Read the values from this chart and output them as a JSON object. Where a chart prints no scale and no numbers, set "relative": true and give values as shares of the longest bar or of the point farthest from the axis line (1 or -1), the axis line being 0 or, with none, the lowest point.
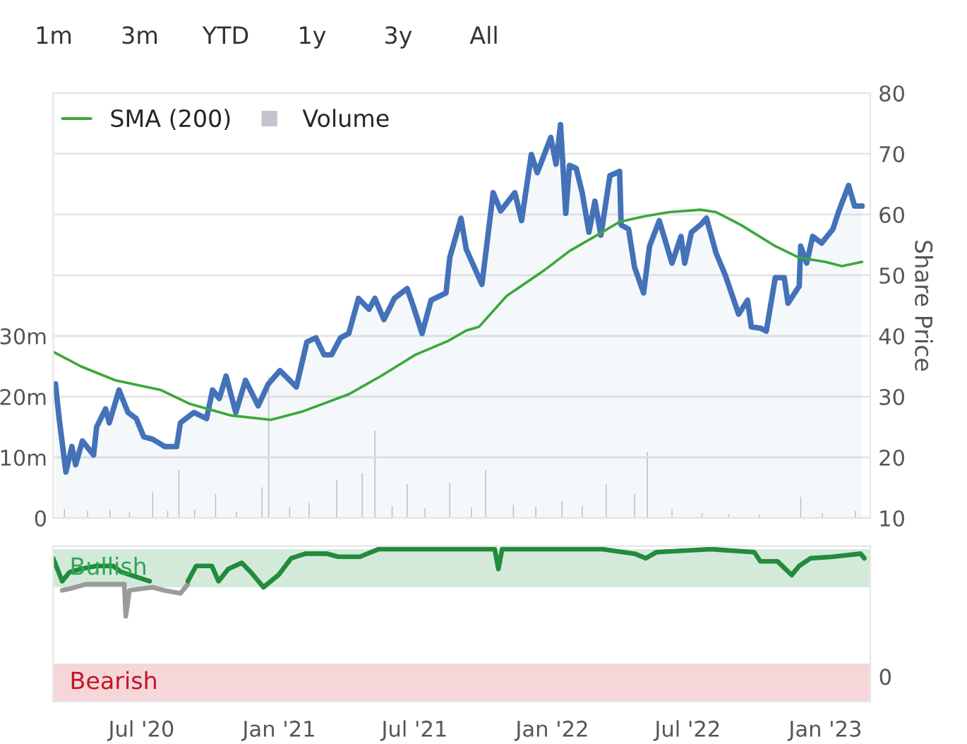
{
  "chart_data": [
    {
      "type": "line",
      "ylabel": "Share Price",
      "xlim": [
        "2020-03-05",
        "2023-03-02"
      ],
      "ylim": [
        10,
        80
      ],
      "yticks": [
        10,
        20,
        30,
        40,
        50,
        60,
        70,
        80
      ],
      "y2lim": [
        0,
        70
      ],
      "y2ticks": [
        {
          "value": 0,
          "label": "0"
        },
        {
          "value": 10,
          "label": "10m"
        },
        {
          "value": 20,
          "label": "20m"
        },
        {
          "value": 30,
          "label": "30m"
        }
      ],
      "grid": "y",
      "legend": "top left",
      "tick_labels": "y",
      "annotations": [
        "1m",
        "3m",
        "YTD",
        "1y",
        "3y",
        "All"
      ],
      "series": [
        {
          "name": "Volume",
          "type": "bar",
          "axis": "y2",
          "color": "#c4c5cc",
          "x": [
            "2020-03-20",
            "2020-04-20",
            "2020-05-20",
            "2020-06-15",
            "2020-07-16",
            "2020-08-05",
            "2020-08-20",
            "2020-09-10",
            "2020-10-08",
            "2020-11-05",
            "2020-12-09",
            "2020-12-18",
            "2021-01-15",
            "2021-02-10",
            "2021-03-19",
            "2021-04-22",
            "2021-05-09",
            "2021-06-01",
            "2021-06-21",
            "2021-07-15",
            "2021-08-17",
            "2021-09-15",
            "2021-10-04",
            "2021-11-10",
            "2021-12-10",
            "2022-01-14",
            "2022-02-10",
            "2022-03-14",
            "2022-04-21",
            "2022-05-08",
            "2022-06-10",
            "2022-07-20",
            "2022-08-25",
            "2022-10-05",
            "2022-11-29",
            "2022-12-28",
            "2023-02-10"
          ],
          "values": [
            1.5,
            1.2,
            1.3,
            1.0,
            4.4,
            1.2,
            7.9,
            1.4,
            4.0,
            1.1,
            5.1,
            23.3,
            1.8,
            2.5,
            6.3,
            7.4,
            14.4,
            2.0,
            5.6,
            1.6,
            5.8,
            1.8,
            7.9,
            2.2,
            1.9,
            2.8,
            2.0,
            5.6,
            4.0,
            10.9,
            1.5,
            0.8,
            0.7,
            0.6,
            3.5,
            0.8,
            1.2
          ]
        },
        {
          "type": "area",
          "color": "#4472b8",
          "x": [
            "2020-03-08",
            "2020-03-13",
            "2020-03-22",
            "2020-03-30",
            "2020-04-04",
            "2020-04-13",
            "2020-04-28",
            "2020-05-02",
            "2020-05-14",
            "2020-05-19",
            "2020-06-01",
            "2020-06-13",
            "2020-06-24",
            "2020-07-04",
            "2020-07-16",
            "2020-08-01",
            "2020-08-17",
            "2020-08-22",
            "2020-09-09",
            "2020-09-26",
            "2020-10-04",
            "2020-10-13",
            "2020-10-22",
            "2020-11-04",
            "2020-11-17",
            "2020-12-04",
            "2020-12-17",
            "2021-01-02",
            "2021-01-24",
            "2021-02-07",
            "2021-02-19",
            "2021-03-02",
            "2021-03-12",
            "2021-03-24",
            "2021-04-04",
            "2021-04-17",
            "2021-05-01",
            "2021-05-09",
            "2021-05-21",
            "2021-06-04",
            "2021-06-21",
            "2021-06-29",
            "2021-07-11",
            "2021-07-23",
            "2021-08-12",
            "2021-08-17",
            "2021-09-01",
            "2021-09-08",
            "2021-09-29",
            "2021-10-14",
            "2021-10-24",
            "2021-11-12",
            "2021-11-21",
            "2021-12-04",
            "2021-12-12",
            "2021-12-30",
            "2022-01-06",
            "2022-01-12",
            "2022-01-19",
            "2022-01-24",
            "2022-02-02",
            "2022-02-10",
            "2022-02-19",
            "2022-02-27",
            "2022-03-07",
            "2022-03-19",
            "2022-04-01",
            "2022-04-03",
            "2022-04-13",
            "2022-04-21",
            "2022-05-03",
            "2022-05-11",
            "2022-05-24",
            "2022-06-10",
            "2022-06-22",
            "2022-06-27",
            "2022-07-06",
            "2022-07-18",
            "2022-07-26",
            "2022-08-08",
            "2022-08-20",
            "2022-09-07",
            "2022-09-19",
            "2022-09-24",
            "2022-10-06",
            "2022-10-14",
            "2022-10-26",
            "2022-11-07",
            "2022-11-12",
            "2022-11-27",
            "2022-11-29",
            "2022-12-07",
            "2022-12-15",
            "2022-12-27",
            "2023-01-11",
            "2023-01-19",
            "2023-02-01",
            "2023-02-09",
            "2023-02-19"
          ],
          "values": [
            32.1,
            26.4,
            17.6,
            21.8,
            18.8,
            22.7,
            20.4,
            25,
            28,
            25.7,
            31.1,
            27.4,
            26.4,
            23.4,
            23,
            21.8,
            21.8,
            25.7,
            27.4,
            26.4,
            31.1,
            29.7,
            33.4,
            27.4,
            32.7,
            28.5,
            32,
            34.3,
            31.6,
            39,
            39.7,
            36.9,
            36.9,
            39.7,
            40.4,
            46.2,
            44.4,
            46.2,
            42.7,
            46.2,
            47.8,
            45,
            40.4,
            45.9,
            47.1,
            52.9,
            59.4,
            54.3,
            48.5,
            63.6,
            60.6,
            63.6,
            59,
            69.9,
            66.9,
            72.7,
            68.3,
            74.8,
            60.2,
            68.1,
            67.6,
            63.6,
            57.1,
            62.2,
            56.6,
            66.4,
            67.1,
            58.3,
            57.6,
            51.3,
            47.1,
            54.8,
            59,
            52,
            56.4,
            52,
            57.1,
            58.3,
            59.4,
            53.6,
            50.1,
            43.6,
            45.9,
            41.5,
            41.3,
            40.8,
            49.6,
            49.6,
            45.4,
            48.2,
            54.8,
            52,
            56.4,
            55.3,
            57.6,
            60.6,
            64.8,
            61.4,
            61.4
          ]
        },
        {
          "name": "SMA (200)",
          "type": "line",
          "color": "#3aa83a",
          "x": [
            "2020-03-05",
            "2020-04-11",
            "2020-05-27",
            "2020-07-27",
            "2020-09-04",
            "2020-10-29",
            "2020-12-21",
            "2021-02-02",
            "2021-04-04",
            "2021-05-17",
            "2021-07-02",
            "2021-08-15",
            "2021-09-08",
            "2021-09-25",
            "2021-11-01",
            "2021-12-21",
            "2022-01-24",
            "2022-02-27",
            "2022-04-01",
            "2022-05-04",
            "2022-06-06",
            "2022-07-18",
            "2022-08-08",
            "2022-09-10",
            "2022-10-26",
            "2022-11-27",
            "2023-01-01",
            "2023-01-23",
            "2023-02-19"
          ],
          "values": [
            37.4,
            35,
            32.7,
            31.1,
            28.8,
            26.9,
            26.2,
            27.6,
            30.4,
            33.4,
            36.9,
            39.2,
            40.9,
            41.5,
            46.6,
            50.8,
            54,
            56.4,
            58.8,
            59.7,
            60.4,
            60.8,
            60.4,
            58.3,
            54.8,
            52.9,
            52.2,
            51.5,
            52.2
          ]
        }
      ]
    },
    {
      "type": "line",
      "relative": true,
      "xlim": [
        "2020-03-05",
        "2023-03-02"
      ],
      "tick_labels": "x",
      "xticks": [
        {
          "value": "2020-07-01",
          "label": "Jul '20"
        },
        {
          "value": "2021-01-01",
          "label": "Jan '21"
        },
        {
          "value": "2021-07-01",
          "label": "Jul '21"
        },
        {
          "value": "2022-01-01",
          "label": "Jan '22"
        },
        {
          "value": "2022-07-01",
          "label": "Jul '22"
        },
        {
          "value": "2023-01-01",
          "label": "Jan '23"
        }
      ],
      "bands": [
        {
          "axis": "y",
          "from": 0.75,
          "to": 1.0,
          "label": "Bullish",
          "color": "#d3eadb"
        },
        {
          "axis": "y",
          "from": 0,
          "to": 0.25,
          "label": "Bearish",
          "color": "#f5d6d9"
        }
      ],
      "annotations": [
        "0"
      ],
      "series": [
        {
          "color": "#9b9b9b",
          "x": [
            "2020-03-17",
            "2020-03-27",
            "2020-04-18",
            "2020-05-18",
            "2020-06-04",
            "2020-06-08",
            "2020-06-10",
            "2020-06-15",
            "2020-07-16",
            "2020-07-31",
            "2020-08-22",
            "2020-09-01"
          ],
          "values": [
            0.73,
            0.74,
            0.77,
            0.77,
            0.77,
            0.77,
            0.56,
            0.73,
            0.75,
            0.73,
            0.71,
            0.77
          ]
        },
        {
          "color": "#238b3c",
          "x": [
            "2020-03-05",
            "2020-03-17",
            "2020-03-27",
            "2020-04-11",
            "2020-05-02",
            "2020-05-24",
            "2020-06-04",
            "2020-07-12",
            "2020-07-30",
            "2020-09-01",
            "2020-09-12",
            "2020-10-03",
            "2020-10-12",
            "2020-10-25",
            "2020-11-12",
            "2020-11-24",
            "2020-12-11",
            "2020-12-31",
            "2021-01-17",
            "2021-02-05",
            "2021-03-06",
            "2021-03-21",
            "2021-04-19",
            "2021-05-14",
            "2021-07-31",
            "2021-10-16",
            "2021-10-21",
            "2021-10-26",
            "2022-03-09",
            "2022-04-21",
            "2022-05-06",
            "2022-05-20",
            "2022-08-01",
            "2022-09-28",
            "2022-10-06",
            "2022-10-29",
            "2022-11-17",
            "2022-11-27",
            "2022-12-12",
            "2023-01-11",
            "2023-02-17",
            "2023-02-22"
          ],
          "values": [
            0.94,
            0.79,
            0.85,
            0.87,
            0.89,
            0.89,
            0.85,
            0.79,
            null,
            0.79,
            0.89,
            0.89,
            0.79,
            0.87,
            0.91,
            0.85,
            0.75,
            0.83,
            0.94,
            0.97,
            0.97,
            0.95,
            0.95,
            1.0,
            1.0,
            1.0,
            0.87,
            1.0,
            1.0,
            0.97,
            0.94,
            0.98,
            1.0,
            0.98,
            0.92,
            0.92,
            0.83,
            0.89,
            0.94,
            0.95,
            0.97,
            0.94
          ]
        }
      ]
    }
  ]
}
